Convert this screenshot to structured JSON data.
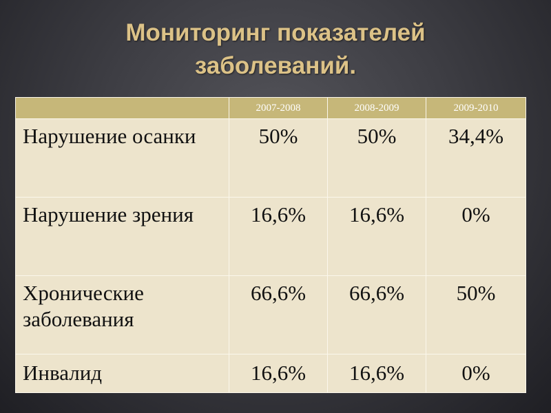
{
  "title": {
    "line1": "Мониторинг показателей",
    "line2": "заболеваний."
  },
  "table": {
    "columns": [
      "",
      "2007-2008",
      "2008-2009",
      "2009-2010"
    ],
    "rows": [
      {
        "label": "Нарушение осанки",
        "values": [
          "50%",
          "50%",
          "34,4%"
        ]
      },
      {
        "label": "Нарушение зрения",
        "values": [
          "16,6%",
          "16,6%",
          "0%"
        ]
      },
      {
        "label": "Хронические заболевания",
        "values": [
          "66,6%",
          "66,6%",
          "50%"
        ]
      },
      {
        "label": "Инвалид",
        "values": [
          "16,6%",
          "16,6%",
          "0%"
        ]
      }
    ]
  },
  "colors": {
    "title": "#dcc287",
    "header_fill": "#c6b779",
    "cell_fill": "#ede4cc",
    "background": "#3e3e44"
  }
}
